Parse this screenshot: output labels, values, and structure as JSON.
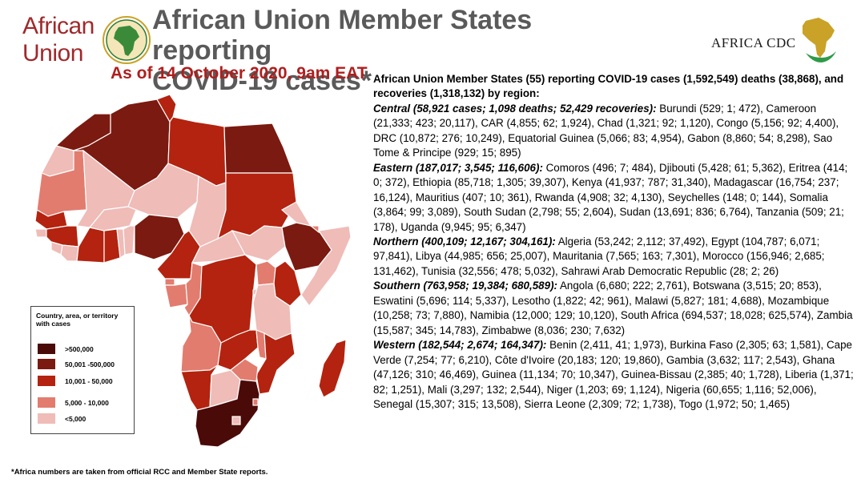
{
  "header": {
    "au_logo_line1": "African",
    "au_logo_line2": "Union",
    "title_line1": "African Union Member States reporting",
    "title_line2": "COVID-19 cases*",
    "as_of": "As of 14 October 2020, 9am EAT",
    "cdc_logo_text": "AFRICA CDC"
  },
  "legend": {
    "title": "Country, area, or territory with cases",
    "items": [
      {
        "label": ">500,000",
        "color": "#4a0a08"
      },
      {
        "label": "50,001 -500,000",
        "color": "#7b1a10"
      },
      {
        "label": "10,001 - 50,000",
        "color": "#b3230f"
      },
      {
        "label": "5,000 - 10,000",
        "color": "#e27c6f"
      },
      {
        "label": "<5,000",
        "color": "#efbcb8"
      }
    ]
  },
  "colors": {
    "title_gray": "#5a5a5a",
    "date_red": "#b01e1e",
    "logo_red": "#a0292b",
    "neutral_land": "#efd8d4",
    "border": "#ffffff"
  },
  "footnote": "*Africa numbers are taken from official RCC and Member State reports.",
  "summary": {
    "intro": "African Union Member States (55) reporting COVID-19 cases (1,592,549) deaths (38,868), and recoveries (1,318,132) by region:",
    "regions": [
      {
        "name": "Central (58,921 cases; 1,098 deaths; 52,429 recoveries):",
        "countries": " Burundi (529; 1; 472), Cameroon (21,333; 423; 20,117), CAR (4,855; 62; 1,924), Chad (1,321; 92; 1,120), Congo (5,156; 92; 4,400), DRC (10,872; 276; 10,249), Equatorial Guinea (5,066; 83; 4,954), Gabon (8,860; 54; 8,298), Sao Tome & Principe (929; 15; 895)"
      },
      {
        "name": "Eastern (187,017; 3,545; 116,606):",
        "countries": " Comoros (496; 7; 484), Djibouti (5,428; 61; 5,362), Eritrea (414; 0; 372), Ethiopia (85,718; 1,305; 39,307), Kenya (41,937; 787; 31,340), Madagascar (16,754; 237; 16,124), Mauritius (407; 10; 361), Rwanda (4,908; 32; 4,130), Seychelles (148; 0; 144), Somalia (3,864; 99; 3,089), South Sudan (2,798; 55; 2,604), Sudan (13,691; 836; 6,764), Tanzania (509; 21; 178), Uganda (9,945; 95; 6,347)"
      },
      {
        "name": "Northern (400,109; 12,167; 304,161):",
        "countries": " Algeria (53,242; 2,112; 37,492), Egypt (104,787; 6,071; 97,841), Libya (44,985; 656; 25,007), Mauritania (7,565; 163; 7,301), Morocco (156,946; 2,685; 131,462), Tunisia (32,556; 478; 5,032), Sahrawi Arab Democratic Republic (28; 2; 26)"
      },
      {
        "name": "Southern (763,958; 19,384; 680,589):",
        "countries": " Angola (6,680; 222; 2,761), Botswana (3,515; 20; 853), Eswatini (5,696; 114; 5,337), Lesotho (1,822; 42; 961), Malawi (5,827; 181; 4,688), Mozambique (10,258; 73; 7,880), Namibia (12,000; 129; 10,120), South Africa (694,537; 18,028; 625,574), Zambia (15,587; 345; 14,783), Zimbabwe (8,036; 230; 7,632)"
      },
      {
        "name": "Western (182,544; 2,674; 164,347):",
        "countries": " Benin (2,411, 41; 1,973), Burkina Faso (2,305; 63; 1,581), Cape Verde (7,254; 77; 6,210), Côte d'Ivoire (20,183; 120; 19,860), Gambia (3,632; 117; 2,543), Ghana (47,126; 310; 46,469), Guinea (11,134; 70; 10,347), Guinea-Bissau (2,385; 40; 1,728), Liberia (1,371; 82; 1,251), Mali (3,297; 132; 2,544), Niger (1,203; 69; 1,124), Nigeria (60,655; 1,116; 52,006), Senegal (15,307; 315; 13,508), Sierra Leone (2,309; 72; 1,738), Togo (1,972; 50; 1,465)"
      }
    ]
  }
}
